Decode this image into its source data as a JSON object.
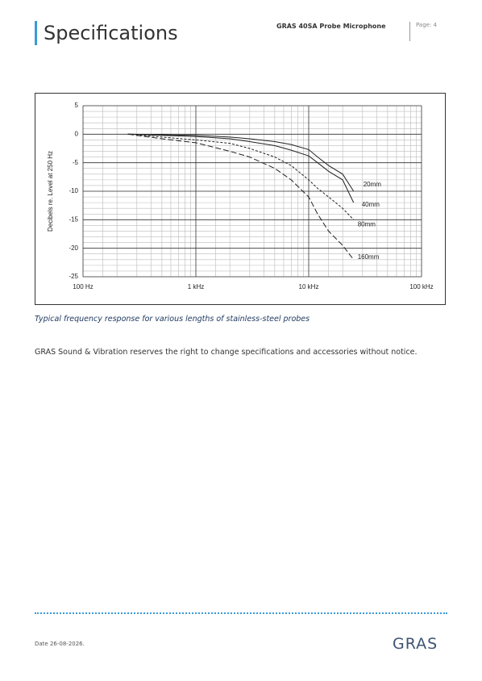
{
  "header": {
    "title": "Specifications",
    "product": "GRAS 40SA Probe Microphone",
    "page": "Page: 4"
  },
  "chart_data": {
    "type": "line",
    "y_label": "Decibels re. Level at 250 Hz",
    "x": [
      250,
      500,
      1000,
      2000,
      3000,
      5000,
      7000,
      10000,
      12000,
      15000,
      20000,
      25000
    ],
    "series": [
      {
        "name": "20mm",
        "color": "#222222",
        "line_style": "solid",
        "values": [
          0,
          -0.1,
          -0.2,
          -0.5,
          -0.8,
          -1.3,
          -1.8,
          -2.7,
          -4,
          -5.5,
          -7,
          -10
        ]
      },
      {
        "name": "40mm",
        "color": "#222222",
        "line_style": "solid",
        "values": [
          0,
          -0.2,
          -0.4,
          -0.8,
          -1.3,
          -2,
          -2.8,
          -3.8,
          -5,
          -6.5,
          -8,
          -12
        ]
      },
      {
        "name": "80mm",
        "color": "#222222",
        "line_style": "dashed",
        "values": [
          0,
          -0.5,
          -1,
          -1.6,
          -2.5,
          -4,
          -5.5,
          -8,
          -9.5,
          -11,
          -13,
          -15
        ]
      },
      {
        "name": "160mm",
        "color": "#222222",
        "line_style": "long-dashed",
        "values": [
          0,
          -0.8,
          -1.5,
          -3,
          -4,
          -6,
          -8,
          -11,
          -14,
          -17,
          -19.5,
          -22
        ]
      }
    ],
    "x_log_scale": true,
    "xlim": [
      100,
      100000
    ],
    "xticks": [
      {
        "value": 100,
        "label": "100 Hz"
      },
      {
        "value": 1000,
        "label": "1 kHz"
      },
      {
        "value": 10000,
        "label": "10 kHz"
      },
      {
        "value": 100000,
        "label": "100 kHz"
      }
    ],
    "ylim": [
      -25,
      5
    ],
    "yticks": [
      -25,
      -20,
      -15,
      -10,
      -5,
      0,
      5
    ],
    "grid": true,
    "minor_grid": true
  },
  "caption": "Typical frequency response for various lengths of stainless-steel probes",
  "notice": "GRAS Sound & Vibration reserves the right to change specifications and accessories without notice.",
  "footer": {
    "date": "Date 26-08-2026.",
    "logo": "GRAS"
  }
}
